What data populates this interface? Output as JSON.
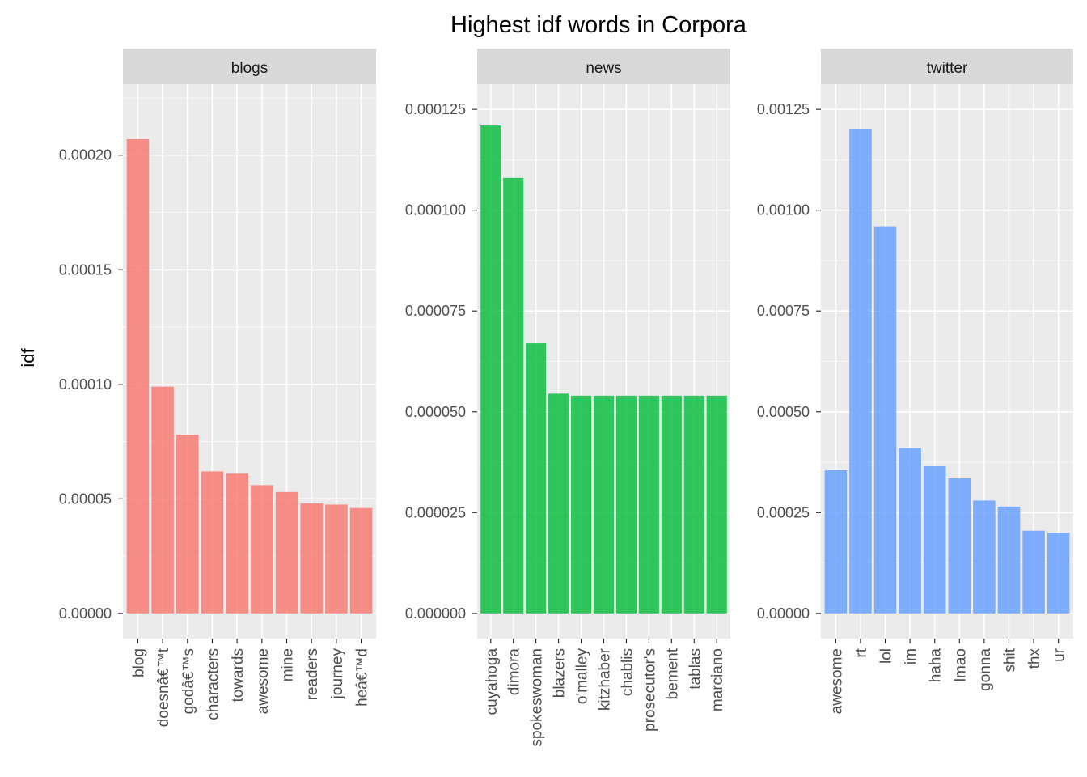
{
  "chart_data": {
    "type": "bar",
    "title": "Highest idf words in Corpora",
    "ylabel": "idf",
    "xlabel": "",
    "legend": "none",
    "grid": true,
    "panels": [
      {
        "name": "blogs",
        "color": "#F8766D",
        "ylim": [
          0,
          0.00022
        ],
        "yticks": [
          0,
          5e-05,
          0.0001,
          0.00015,
          0.0002
        ],
        "ytick_labels": [
          "0.00000",
          "0.00005",
          "0.00010",
          "0.00015",
          "0.00020"
        ],
        "categories": [
          "blog",
          "doesnâ€™t",
          "godâ€™s",
          "characters",
          "towards",
          "awesome",
          "mine",
          "readers",
          "journey",
          "heâ€™d"
        ],
        "values": [
          0.000207,
          9.9e-05,
          7.8e-05,
          6.2e-05,
          6.1e-05,
          5.6e-05,
          5.3e-05,
          4.8e-05,
          4.75e-05,
          4.6e-05
        ]
      },
      {
        "name": "news",
        "color": "#00BA38",
        "ylim": [
          0,
          0.000125
        ],
        "yticks": [
          0,
          2.5e-05,
          5e-05,
          7.5e-05,
          0.0001,
          0.000125
        ],
        "ytick_labels": [
          "0.000000",
          "0.000025",
          "0.000050",
          "0.000075",
          "0.000100",
          "0.000125"
        ],
        "categories": [
          "cuyahoga",
          "dimora",
          "spokeswoman",
          "blazers",
          "o'malley",
          "kitzhaber",
          "chablis",
          "prosecutor's",
          "bement",
          "tablas",
          "marciano"
        ],
        "values": [
          0.000121,
          0.000108,
          6.7e-05,
          5.45e-05,
          5.4e-05,
          5.4e-05,
          5.4e-05,
          5.4e-05,
          5.4e-05,
          5.4e-05,
          5.4e-05
        ]
      },
      {
        "name": "twitter",
        "color": "#619CFF",
        "ylim": [
          0,
          0.00125
        ],
        "yticks": [
          0,
          0.00025,
          0.0005,
          0.00075,
          0.001,
          0.00125
        ],
        "ytick_labels": [
          "0.00000",
          "0.00025",
          "0.00050",
          "0.00075",
          "0.00100",
          "0.00125"
        ],
        "categories": [
          "awesome",
          "rt",
          "lol",
          "im",
          "haha",
          "lmao",
          "gonna",
          "shit",
          "thx",
          "ur"
        ],
        "values": [
          0.000355,
          0.0012,
          0.00096,
          0.00041,
          0.000365,
          0.000335,
          0.00028,
          0.000265,
          0.000205,
          0.0002
        ]
      }
    ]
  }
}
